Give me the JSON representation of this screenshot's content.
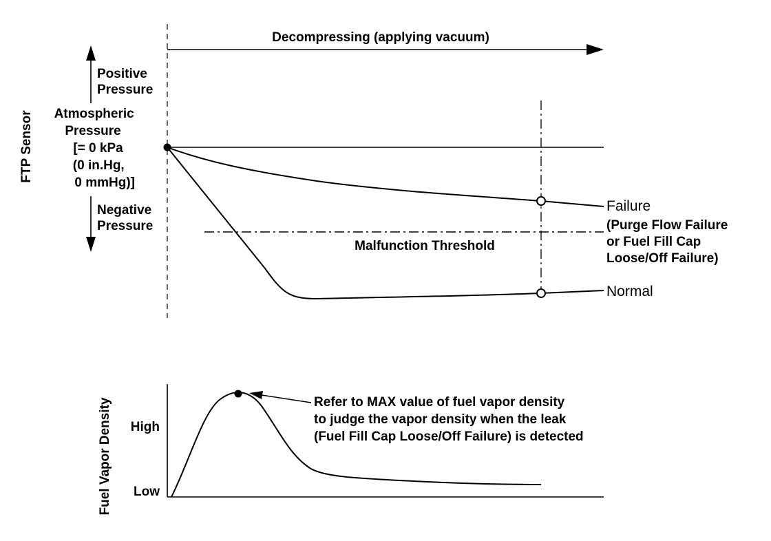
{
  "top_chart": {
    "header_label": "Decompressing (applying vacuum)",
    "y_axis_label": "FTP Sensor",
    "positive_label": [
      "Positive",
      "Pressure"
    ],
    "atmospheric_label": [
      "Atmospheric",
      "Pressure",
      "[= 0 kPa",
      "(0 in.Hg,",
      "0 mmHg)]"
    ],
    "negative_label": [
      "Negative",
      "Pressure"
    ],
    "threshold_label": "Malfunction Threshold",
    "failure_label": "Failure",
    "failure_detail": [
      "(Purge Flow Failure",
      "or Fuel Fill Cap",
      "Loose/Off Failure)"
    ],
    "normal_label": "Normal"
  },
  "bottom_chart": {
    "y_axis_label": "Fuel Vapor Density",
    "high_label": "High",
    "low_label": "Low",
    "annotation": [
      "Refer to MAX value of fuel vapor density",
      "to judge the vapor density when the leak",
      "(Fuel Fill Cap Loose/Off Failure) is detected"
    ]
  },
  "colors": {
    "line": "#000000",
    "background": "#ffffff"
  }
}
